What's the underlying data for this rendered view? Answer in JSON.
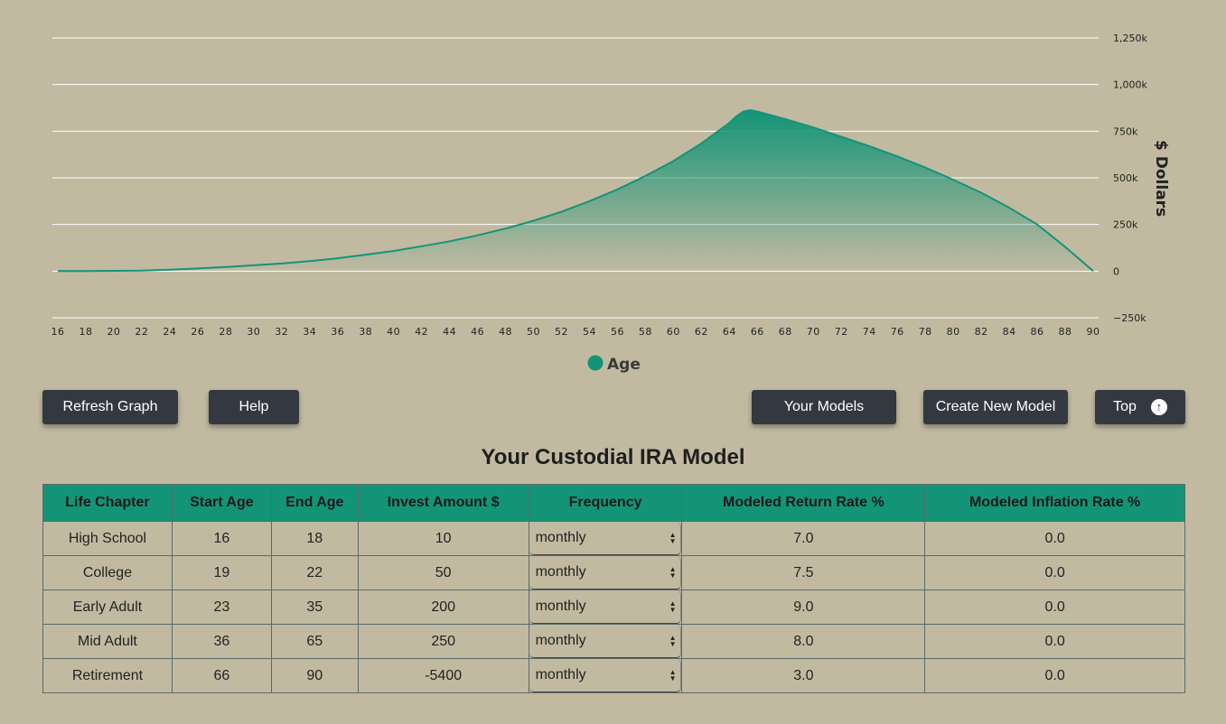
{
  "chart_data": {
    "type": "area",
    "x_min": 16,
    "x_max": 90,
    "x_ticks": [
      16,
      18,
      20,
      22,
      24,
      26,
      28,
      30,
      32,
      34,
      36,
      38,
      40,
      42,
      44,
      46,
      48,
      50,
      52,
      54,
      56,
      58,
      60,
      62,
      64,
      66,
      68,
      70,
      72,
      74,
      76,
      78,
      80,
      82,
      84,
      86,
      88,
      90
    ],
    "y_ticks": [
      {
        "value": 1250000,
        "label": "1,250k"
      },
      {
        "value": 1000000,
        "label": "1,000k"
      },
      {
        "value": 750000,
        "label": "750k"
      },
      {
        "value": 500000,
        "label": "500k"
      },
      {
        "value": 250000,
        "label": "250k"
      },
      {
        "value": 0,
        "label": "0"
      },
      {
        "value": -250000,
        "label": "−250k"
      }
    ],
    "ylim": [
      -250000,
      1250000
    ],
    "ylabel": "$ Dollars",
    "legend": "Age",
    "legend_position": "bottom",
    "grid": true,
    "color": "#139477",
    "x": [
      16,
      18,
      20,
      22,
      24,
      26,
      28,
      30,
      32,
      34,
      36,
      38,
      40,
      42,
      44,
      46,
      48,
      50,
      52,
      54,
      56,
      58,
      60,
      62,
      64,
      64.5,
      65,
      65.5,
      66,
      68,
      70,
      72,
      74,
      76,
      78,
      80,
      82,
      84,
      86,
      88,
      90
    ],
    "y": [
      0,
      500,
      1500,
      3000,
      8000,
      14000,
      22000,
      31000,
      41000,
      54000,
      69000,
      88000,
      108000,
      133000,
      160000,
      192000,
      228000,
      270000,
      318000,
      375000,
      438000,
      510000,
      590000,
      685000,
      795000,
      830000,
      855000,
      863000,
      855000,
      815000,
      770000,
      720000,
      670000,
      615000,
      555000,
      490000,
      420000,
      340000,
      250000,
      130000,
      0
    ]
  },
  "buttons": {
    "refresh": "Refresh Graph",
    "help": "Help",
    "models": "Your Models",
    "create": "Create New Model",
    "top": "Top"
  },
  "page_title": "Your Custodial IRA Model",
  "table": {
    "headers": [
      "Life Chapter",
      "Start Age",
      "End Age",
      "Invest Amount $",
      "Frequency",
      "Modeled Return Rate %",
      "Modeled Inflation Rate %"
    ],
    "rows": [
      {
        "chapter": "High School",
        "start": "16",
        "end": "18",
        "amount": "10",
        "frequency": "monthly",
        "return_rate": "7.0",
        "inflation": "0.0"
      },
      {
        "chapter": "College",
        "start": "19",
        "end": "22",
        "amount": "50",
        "frequency": "monthly",
        "return_rate": "7.5",
        "inflation": "0.0"
      },
      {
        "chapter": "Early Adult",
        "start": "23",
        "end": "35",
        "amount": "200",
        "frequency": "monthly",
        "return_rate": "9.0",
        "inflation": "0.0"
      },
      {
        "chapter": "Mid Adult",
        "start": "36",
        "end": "65",
        "amount": "250",
        "frequency": "monthly",
        "return_rate": "8.0",
        "inflation": "0.0"
      },
      {
        "chapter": "Retirement",
        "start": "66",
        "end": "90",
        "amount": "-5400",
        "frequency": "monthly",
        "return_rate": "3.0",
        "inflation": "0.0"
      }
    ]
  }
}
